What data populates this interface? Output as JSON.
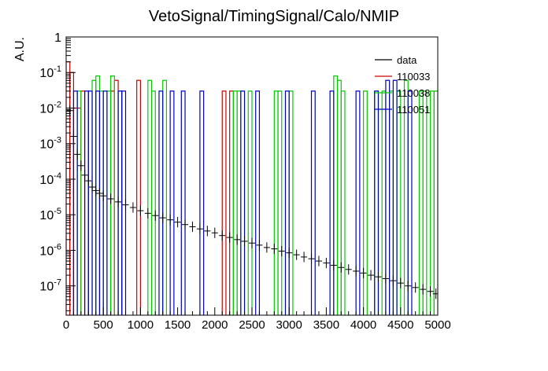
{
  "chart_data": {
    "type": "line",
    "title": "VetoSignal/TimingSignal/Calo/NMIP",
    "ylabel": "A.U.",
    "xlabel": "",
    "xlim": [
      0,
      5000
    ],
    "ylim": [
      1.5e-08,
      1
    ],
    "ylog": true,
    "grid": false,
    "legend_position": "top-right",
    "x_ticks": [
      "0",
      "500",
      "1000",
      "1500",
      "2000",
      "2500",
      "3000",
      "3500",
      "4000",
      "4500",
      "5000"
    ],
    "y_ticks": [
      {
        "base": "10",
        "exp": "-7",
        "value": 1e-07
      },
      {
        "base": "10",
        "exp": "-6",
        "value": 1e-06
      },
      {
        "base": "10",
        "exp": "-5",
        "value": 1e-05
      },
      {
        "base": "10",
        "exp": "-4",
        "value": 0.0001
      },
      {
        "base": "10",
        "exp": "-3",
        "value": 0.001
      },
      {
        "base": "10",
        "exp": "-2",
        "value": 0.01
      },
      {
        "base": "10",
        "exp": "-1",
        "value": 0.1
      },
      {
        "base": "1",
        "exp": "",
        "value": 1
      }
    ],
    "series": [
      {
        "name": "data",
        "color": "#000000",
        "style": "errorbar",
        "points": [
          [
            50,
            0.0085
          ],
          [
            100,
            0.0016
          ],
          [
            150,
            0.0005
          ],
          [
            200,
            0.00024
          ],
          [
            250,
            0.00013
          ],
          [
            300,
            9e-05
          ],
          [
            350,
            6e-05
          ],
          [
            400,
            4.8e-05
          ],
          [
            450,
            4e-05
          ],
          [
            500,
            3.4e-05
          ],
          [
            600,
            2.8e-05
          ],
          [
            700,
            2.3e-05
          ],
          [
            800,
            1.9e-05
          ],
          [
            900,
            1.6e-05
          ],
          [
            1000,
            1.3e-05
          ],
          [
            1100,
            1.1e-05
          ],
          [
            1200,
            9.5e-06
          ],
          [
            1300,
            8.2e-06
          ],
          [
            1400,
            7.2e-06
          ],
          [
            1500,
            6.2e-06
          ],
          [
            1600,
            5.3e-06
          ],
          [
            1700,
            4.6e-06
          ],
          [
            1800,
            4e-06
          ],
          [
            1900,
            3.5e-06
          ],
          [
            2000,
            3.1e-06
          ],
          [
            2100,
            2.6e-06
          ],
          [
            2200,
            2.3e-06
          ],
          [
            2300,
            2e-06
          ],
          [
            2400,
            1.8e-06
          ],
          [
            2500,
            1.6e-06
          ],
          [
            2600,
            1.4e-06
          ],
          [
            2700,
            1.2e-06
          ],
          [
            2800,
            1.1e-06
          ],
          [
            2900,
            9.5e-07
          ],
          [
            3000,
            8.5e-07
          ],
          [
            3100,
            7.5e-07
          ],
          [
            3200,
            6.5e-07
          ],
          [
            3300,
            5.8e-07
          ],
          [
            3400,
            5e-07
          ],
          [
            3500,
            4.4e-07
          ],
          [
            3600,
            3.8e-07
          ],
          [
            3700,
            3.3e-07
          ],
          [
            3800,
            2.9e-07
          ],
          [
            3900,
            2.6e-07
          ],
          [
            4000,
            2.3e-07
          ],
          [
            4100,
            2e-07
          ],
          [
            4200,
            1.8e-07
          ],
          [
            4300,
            1.6e-07
          ],
          [
            4400,
            1.4e-07
          ],
          [
            4500,
            1.2e-07
          ],
          [
            4600,
            1e-07
          ],
          [
            4700,
            9e-08
          ],
          [
            4800,
            8e-08
          ],
          [
            4900,
            7e-08
          ],
          [
            4975,
            6e-08
          ]
        ]
      },
      {
        "name": "110033",
        "color": "#cc0000",
        "style": "histogram",
        "bins": [
          [
            0,
            50,
            0.2
          ],
          [
            50,
            100,
            0.1
          ],
          [
            100,
            200,
            0.01
          ],
          [
            200,
            250,
            0.03
          ],
          [
            600,
            650,
            0.03
          ],
          [
            650,
            700,
            0.06
          ],
          [
            950,
            1000,
            0.06
          ],
          [
            2100,
            2150,
            0.03
          ],
          [
            2200,
            2250,
            0.03
          ]
        ]
      },
      {
        "name": "110038",
        "color": "#00cc00",
        "style": "histogram",
        "bins": [
          [
            150,
            200,
            0.03
          ],
          [
            350,
            400,
            0.06
          ],
          [
            400,
            450,
            0.08
          ],
          [
            450,
            500,
            0.03
          ],
          [
            550,
            600,
            0.03
          ],
          [
            600,
            650,
            0.08
          ],
          [
            700,
            750,
            0.03
          ],
          [
            1100,
            1150,
            0.06
          ],
          [
            1150,
            1200,
            0.03
          ],
          [
            1300,
            1350,
            0.06
          ],
          [
            2250,
            2300,
            0.03
          ],
          [
            2300,
            2350,
            0.03
          ],
          [
            2450,
            2500,
            0.03
          ],
          [
            2800,
            2850,
            0.03
          ],
          [
            2850,
            2900,
            0.03
          ],
          [
            3000,
            3050,
            0.03
          ],
          [
            3600,
            3650,
            0.08
          ],
          [
            3650,
            3700,
            0.06
          ],
          [
            3700,
            3750,
            0.03
          ],
          [
            4000,
            4050,
            0.03
          ],
          [
            4150,
            4200,
            0.03
          ],
          [
            4250,
            4300,
            0.03
          ],
          [
            4350,
            4400,
            0.03
          ],
          [
            4450,
            4500,
            0.03
          ],
          [
            4550,
            4600,
            0.06
          ],
          [
            4750,
            4800,
            0.03
          ],
          [
            4800,
            4850,
            0.03
          ],
          [
            4900,
            4950,
            0.03
          ],
          [
            4950,
            5000,
            0.03
          ]
        ]
      },
      {
        "name": "110051",
        "color": "#0000cc",
        "style": "histogram",
        "bins": [
          [
            100,
            150,
            0.03
          ],
          [
            250,
            300,
            0.03
          ],
          [
            300,
            350,
            0.03
          ],
          [
            400,
            450,
            0.03
          ],
          [
            500,
            550,
            0.03
          ],
          [
            700,
            750,
            0.03
          ],
          [
            750,
            800,
            0.03
          ],
          [
            1250,
            1300,
            0.03
          ],
          [
            1400,
            1450,
            0.03
          ],
          [
            1550,
            1600,
            0.03
          ],
          [
            1800,
            1850,
            0.03
          ],
          [
            2350,
            2400,
            0.03
          ],
          [
            2550,
            2600,
            0.03
          ],
          [
            2950,
            3000,
            0.03
          ],
          [
            3300,
            3350,
            0.03
          ],
          [
            3550,
            3600,
            0.03
          ],
          [
            3900,
            3950,
            0.03
          ],
          [
            4150,
            4200,
            0.03
          ],
          [
            4300,
            4350,
            0.06
          ],
          [
            4400,
            4450,
            0.06
          ],
          [
            4600,
            4650,
            0.03
          ]
        ]
      }
    ]
  }
}
